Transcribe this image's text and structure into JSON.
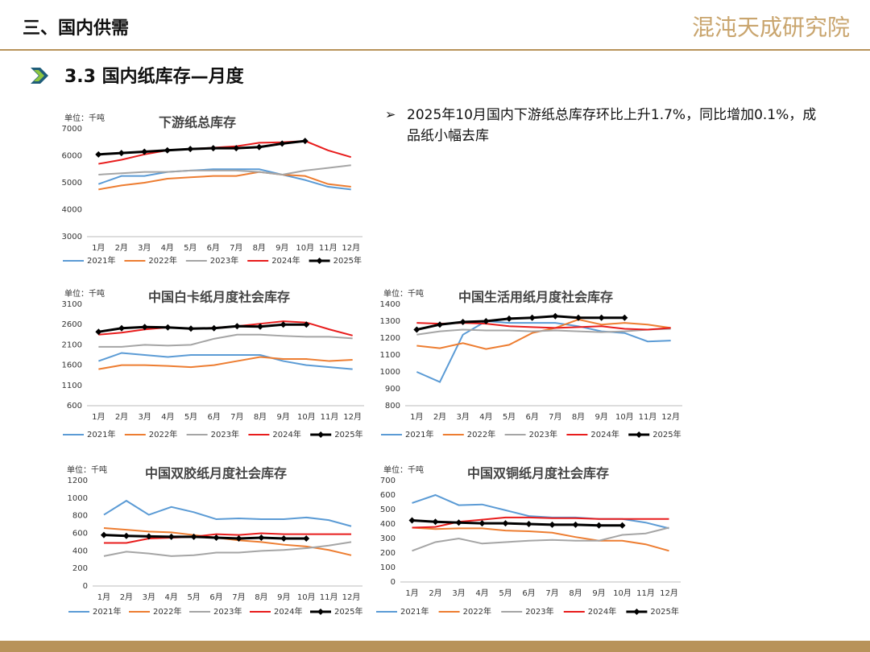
{
  "header": {
    "title": "三、国内供需",
    "logo": "混沌天成研究院",
    "section": "3.3 国内纸库存—月度"
  },
  "bullet": "2025年10月国内下游纸总库存环比上升1.7%，同比增加0.1%，成品纸小幅去库",
  "chart_data": [
    {
      "type": "line",
      "title": "下游纸总库存",
      "unit": "单位：千吨",
      "categories": [
        "1月",
        "2月",
        "3月",
        "4月",
        "5月",
        "6月",
        "7月",
        "8月",
        "9月",
        "10月",
        "11月",
        "12月"
      ],
      "ylim": [
        3000,
        7000
      ],
      "yticks": [
        3000,
        4000,
        5000,
        6000,
        7000
      ],
      "series": [
        {
          "name": "2021年",
          "color": "#5b9bd5",
          "values": [
            4950,
            5250,
            5250,
            5400,
            5450,
            5500,
            5500,
            5500,
            5300,
            5100,
            4850,
            4750
          ]
        },
        {
          "name": "2022年",
          "color": "#ed7d31",
          "values": [
            4750,
            4900,
            5000,
            5150,
            5200,
            5250,
            5250,
            5400,
            5300,
            5250,
            4950,
            4850
          ]
        },
        {
          "name": "2023年",
          "color": "#a5a5a5",
          "values": [
            5300,
            5350,
            5400,
            5400,
            5450,
            5450,
            5450,
            5400,
            5300,
            5450,
            5550,
            5650
          ]
        },
        {
          "name": "2024年",
          "color": "#e81c1c",
          "values": [
            5700,
            5850,
            6050,
            6200,
            6250,
            6300,
            6350,
            6480,
            6500,
            6550,
            6200,
            5950
          ]
        },
        {
          "name": "2025年",
          "color": "#000000",
          "marker": "diamond",
          "values": [
            6050,
            6100,
            6150,
            6200,
            6250,
            6280,
            6280,
            6320,
            6450,
            6550,
            null,
            null
          ]
        }
      ]
    },
    {
      "type": "line",
      "title": "中国白卡纸月度社会库存",
      "unit": "单位：千吨",
      "categories": [
        "1月",
        "2月",
        "3月",
        "4月",
        "5月",
        "6月",
        "7月",
        "8月",
        "9月",
        "10月",
        "11月",
        "12月"
      ],
      "ylim": [
        600,
        3100
      ],
      "yticks": [
        600,
        1100,
        1600,
        2100,
        2600,
        3100
      ],
      "series": [
        {
          "name": "2021年",
          "color": "#5b9bd5",
          "values": [
            1700,
            1900,
            1850,
            1800,
            1850,
            1850,
            1850,
            1850,
            1700,
            1600,
            1550,
            1500
          ]
        },
        {
          "name": "2022年",
          "color": "#ed7d31",
          "values": [
            1500,
            1600,
            1600,
            1580,
            1550,
            1600,
            1700,
            1800,
            1750,
            1750,
            1700,
            1730
          ]
        },
        {
          "name": "2023年",
          "color": "#a5a5a5",
          "values": [
            2050,
            2050,
            2100,
            2080,
            2100,
            2250,
            2350,
            2350,
            2320,
            2300,
            2300,
            2260
          ]
        },
        {
          "name": "2024年",
          "color": "#e81c1c",
          "values": [
            2350,
            2400,
            2480,
            2530,
            2500,
            2520,
            2560,
            2620,
            2680,
            2650,
            2480,
            2330
          ]
        },
        {
          "name": "2025年",
          "color": "#000000",
          "marker": "diamond",
          "values": [
            2420,
            2510,
            2540,
            2530,
            2500,
            2510,
            2560,
            2550,
            2600,
            2600,
            null,
            null
          ]
        }
      ]
    },
    {
      "type": "line",
      "title": "中国生活用纸月度社会库存",
      "unit": "单位：千吨",
      "categories": [
        "1月",
        "2月",
        "3月",
        "4月",
        "5月",
        "6月",
        "7月",
        "8月",
        "9月",
        "10月",
        "11月",
        "12月"
      ],
      "ylim": [
        800,
        1400
      ],
      "yticks": [
        800,
        900,
        1000,
        1100,
        1200,
        1300,
        1400
      ],
      "series": [
        {
          "name": "2021年",
          "color": "#5b9bd5",
          "values": [
            1000,
            940,
            1220,
            1300,
            1290,
            1290,
            1290,
            1270,
            1240,
            1230,
            1180,
            1185
          ]
        },
        {
          "name": "2022年",
          "color": "#ed7d31",
          "values": [
            1155,
            1140,
            1170,
            1135,
            1160,
            1230,
            1260,
            1310,
            1280,
            1290,
            1280,
            1260
          ]
        },
        {
          "name": "2023年",
          "color": "#a5a5a5",
          "values": [
            1220,
            1240,
            1250,
            1245,
            1245,
            1240,
            1245,
            1240,
            1235,
            1240,
            1250,
            1255
          ]
        },
        {
          "name": "2024年",
          "color": "#e81c1c",
          "values": [
            1290,
            1285,
            1290,
            1285,
            1270,
            1265,
            1260,
            1265,
            1270,
            1255,
            1250,
            1260
          ]
        },
        {
          "name": "2025年",
          "color": "#000000",
          "marker": "diamond",
          "values": [
            1250,
            1280,
            1295,
            1300,
            1315,
            1320,
            1330,
            1320,
            1320,
            1320,
            null,
            null
          ]
        }
      ]
    },
    {
      "type": "line",
      "title": "中国双胶纸月度社会库存",
      "unit": "单位：千吨",
      "categories": [
        "1月",
        "2月",
        "3月",
        "4月",
        "5月",
        "6月",
        "7月",
        "8月",
        "9月",
        "10月",
        "11月",
        "12月"
      ],
      "ylim": [
        0,
        1200
      ],
      "yticks": [
        0,
        200,
        400,
        600,
        800,
        1000,
        1200
      ],
      "series": [
        {
          "name": "2021年",
          "color": "#5b9bd5",
          "values": [
            810,
            970,
            810,
            900,
            840,
            760,
            770,
            760,
            760,
            780,
            750,
            680
          ]
        },
        {
          "name": "2022年",
          "color": "#ed7d31",
          "values": [
            660,
            640,
            620,
            610,
            580,
            550,
            520,
            500,
            470,
            450,
            410,
            350
          ]
        },
        {
          "name": "2023年",
          "color": "#a5a5a5",
          "values": [
            340,
            390,
            370,
            340,
            350,
            380,
            380,
            400,
            410,
            430,
            460,
            500
          ]
        },
        {
          "name": "2024年",
          "color": "#e81c1c",
          "values": [
            490,
            490,
            540,
            550,
            560,
            590,
            580,
            600,
            590,
            590,
            590,
            590
          ]
        },
        {
          "name": "2025年",
          "color": "#000000",
          "marker": "diamond",
          "values": [
            580,
            570,
            565,
            560,
            560,
            550,
            540,
            550,
            540,
            540,
            null,
            null
          ]
        }
      ]
    },
    {
      "type": "line",
      "title": "中国双铜纸月度社会库存",
      "unit": "单位：千吨",
      "categories": [
        "1月",
        "2月",
        "3月",
        "4月",
        "5月",
        "6月",
        "7月",
        "8月",
        "9月",
        "10月",
        "11月",
        "12月"
      ],
      "ylim": [
        0,
        700
      ],
      "yticks": [
        0,
        100,
        200,
        300,
        400,
        500,
        600,
        700
      ],
      "series": [
        {
          "name": "2021年",
          "color": "#5b9bd5",
          "values": [
            545,
            600,
            530,
            535,
            495,
            455,
            445,
            445,
            435,
            435,
            410,
            370
          ]
        },
        {
          "name": "2022年",
          "color": "#ed7d31",
          "values": [
            375,
            365,
            370,
            370,
            355,
            350,
            340,
            310,
            285,
            285,
            260,
            215
          ]
        },
        {
          "name": "2023年",
          "color": "#a5a5a5",
          "values": [
            215,
            275,
            300,
            265,
            275,
            285,
            290,
            285,
            285,
            325,
            335,
            375
          ]
        },
        {
          "name": "2024年",
          "color": "#e81c1c",
          "values": [
            375,
            380,
            415,
            430,
            445,
            445,
            440,
            440,
            435,
            435,
            435,
            435
          ]
        },
        {
          "name": "2025年",
          "color": "#000000",
          "marker": "diamond",
          "values": [
            425,
            415,
            410,
            405,
            405,
            400,
            395,
            395,
            390,
            390,
            null,
            null
          ]
        }
      ]
    }
  ]
}
